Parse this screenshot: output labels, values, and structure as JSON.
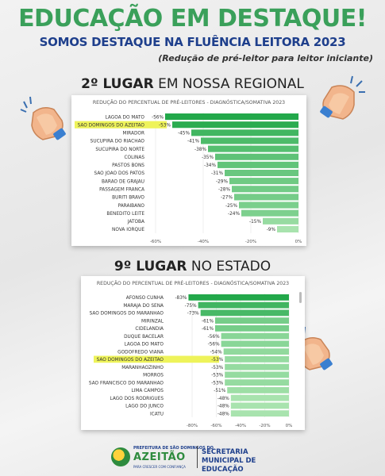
{
  "headline": "EDUCAÇÃO EM DESTAQUE!",
  "subhead": "SOMOS DESTAQUE NA FLUÊNCIA LEITORA 2023",
  "note": "(Redução de pré-leitor para leitor iniciante)",
  "section1": {
    "rank": "2º LUGAR",
    "rest": " EM NOSSA REGIONAL"
  },
  "section2": {
    "rank": "9º LUGAR",
    "rest": " NO ESTADO"
  },
  "colors": {
    "headline": "#3aa05a",
    "subhead": "#1e3f8c",
    "bar_light": "#a8e3ae",
    "bar_dark": "#22a84a",
    "highlight": "#eef35a"
  },
  "chart_data": [
    {
      "type": "bar",
      "orientation": "horizontal",
      "title": "REDUÇÃO DO PERCENTUAL DE PRÉ-LEITORES - DIAGNÓSTICA/SOMATIVA 2023",
      "categories": [
        "LAGOA DO MATO",
        "SAO DOMINGOS DO AZEITAO",
        "MIRADOR",
        "SUCUPIRA DO RIACHAO",
        "SUCUPIRA DO NORTE",
        "COLINAS",
        "PASTOS BONS",
        "SAO JOAO DOS PATOS",
        "BARAO DE GRAJAU",
        "PASSAGEM FRANCA",
        "BURITI BRAVO",
        "PARAIBANO",
        "BENEDITO LEITE",
        "JATOBA",
        "NOVA IORQUE"
      ],
      "values": [
        -56,
        -53,
        -45,
        -41,
        -38,
        -35,
        -34,
        -31,
        -29,
        -28,
        -27,
        -25,
        -24,
        -15,
        -9
      ],
      "value_labels": [
        "-56%",
        "-53%",
        "-45%",
        "-41%",
        "-38%",
        "-35%",
        "-34%",
        "-31%",
        "-29%",
        "-28%",
        "-27%",
        "-25%",
        "-24%",
        "-15%",
        "-9%"
      ],
      "highlight": "SAO DOMINGOS DO AZEITAO",
      "xlim": [
        -60,
        0
      ],
      "xticks": [
        "-60%",
        "-40%",
        "-20%",
        "0%"
      ]
    },
    {
      "type": "bar",
      "orientation": "horizontal",
      "title": "REDUÇÃO DO PERCENTUAL DE PRÉ-LEITORES - DIAGNÓSTICA/SOMATIVA 2023",
      "categories": [
        "AFONSO CUNHA",
        "MARAJA DO SENA",
        "SAO DOMINGOS DO MARANHAO",
        "MIRINZAL",
        "CIDELANDIA",
        "DUQUE BACELAR",
        "LAGOA DO MATO",
        "GODOFREDO VIANA",
        "SAO DOMINGOS DO AZEITAO",
        "MARANHAOZINHO",
        "MORROS",
        "SAO FRANCISCO DO MARANHAO",
        "LIMA CAMPOS",
        "LAGO DOS RODRIGUES",
        "LAGO DO JUNCO",
        "ICATU"
      ],
      "values": [
        -83,
        -75,
        -73,
        -61,
        -61,
        -56,
        -56,
        -54,
        -53,
        -53,
        -53,
        -53,
        -51,
        -48,
        -48,
        -48
      ],
      "value_labels": [
        "-83%",
        "-75%",
        "-73%",
        "-61%",
        "-61%",
        "-56%",
        "-56%",
        "-54%",
        "-53%",
        "-53%",
        "-53%",
        "-53%",
        "-51%",
        "-48%",
        "-48%",
        "-48%"
      ],
      "highlight": "SAO DOMINGOS DO AZEITAO",
      "xlim": [
        -80,
        0
      ],
      "xticks": [
        "-80%",
        "-60%",
        "-40%",
        "-20%",
        "0%"
      ]
    }
  ],
  "footer": {
    "logo_top": "PREFEITURA DE SÃO DOMINGOS DO",
    "logo_main": "AZEITÃO",
    "logo_tag": "PARA CRESCER COM CONFIANÇA",
    "secretaria": "SECRETARIA MUNICIPAL DE EDUCAÇÃO"
  }
}
